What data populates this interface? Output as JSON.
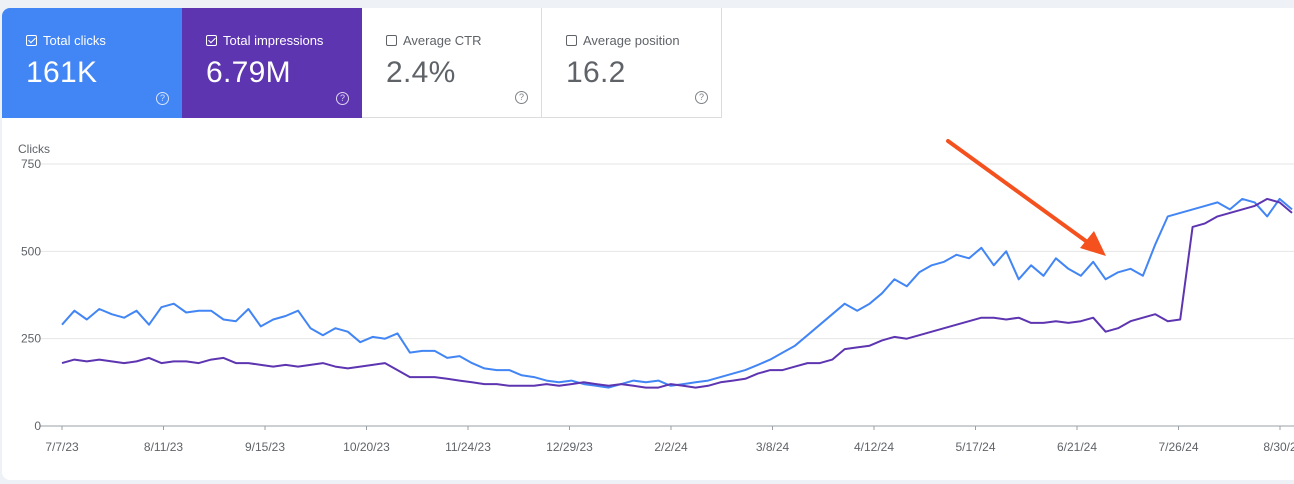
{
  "metrics": [
    {
      "label": "Total clicks",
      "value": "161K",
      "checked": true
    },
    {
      "label": "Total impressions",
      "value": "6.79M",
      "checked": true
    },
    {
      "label": "Average CTR",
      "value": "2.4%",
      "checked": false
    },
    {
      "label": "Average position",
      "value": "16.2",
      "checked": false
    }
  ],
  "colors": {
    "clicks": "#4285f4",
    "impressions": "#5e35b1",
    "arrow": "#f4511e",
    "grid": "#e6e6e6"
  },
  "icons": {
    "checkbox": "checkbox-icon",
    "help": "help-circle-icon",
    "annotation": "arrow-icon"
  },
  "chart_data": {
    "type": "line",
    "ylabel": "Clicks",
    "ylim": [
      0,
      750
    ],
    "yticks": [
      "0",
      "250",
      "500",
      "750"
    ],
    "xtick_labels": [
      "7/7/23",
      "8/11/23",
      "9/15/23",
      "10/20/23",
      "11/24/23",
      "12/29/23",
      "2/2/24",
      "3/8/24",
      "4/12/24",
      "5/17/24",
      "6/21/24",
      "7/26/24",
      "8/30/2"
    ],
    "grid": true,
    "legend": "none",
    "x_unit": "weeks",
    "series": [
      {
        "key": "clicks",
        "values": [
          290,
          330,
          305,
          335,
          320,
          310,
          330,
          290,
          340,
          350,
          325,
          330,
          330,
          305,
          300,
          335,
          285,
          305,
          315,
          330,
          280,
          260,
          280,
          270,
          240,
          255,
          250,
          265,
          210,
          215,
          215,
          195,
          200,
          180,
          165,
          160,
          160,
          145,
          140,
          130,
          125,
          130,
          120,
          115,
          110,
          120,
          130,
          125,
          130,
          115,
          120,
          125,
          130,
          140,
          150,
          160,
          175,
          190,
          210,
          230,
          260,
          290,
          320,
          350,
          330,
          350,
          380,
          420,
          400,
          440,
          460,
          470,
          490,
          480,
          510,
          460,
          500,
          420,
          460,
          430,
          480,
          450,
          430,
          470,
          420,
          440,
          450,
          430,
          520,
          600,
          610,
          620,
          630,
          640,
          620,
          650,
          640,
          600,
          650,
          620
        ]
      },
      {
        "key": "impressions",
        "values": [
          180,
          190,
          185,
          190,
          185,
          180,
          185,
          195,
          180,
          185,
          185,
          180,
          190,
          195,
          180,
          180,
          175,
          170,
          175,
          170,
          175,
          180,
          170,
          165,
          170,
          175,
          180,
          160,
          140,
          140,
          140,
          135,
          130,
          125,
          120,
          120,
          115,
          115,
          115,
          120,
          115,
          120,
          125,
          120,
          115,
          120,
          115,
          110,
          110,
          120,
          115,
          110,
          115,
          125,
          130,
          135,
          150,
          160,
          160,
          170,
          180,
          180,
          190,
          220,
          225,
          230,
          245,
          255,
          250,
          260,
          270,
          280,
          290,
          300,
          310,
          310,
          305,
          310,
          295,
          295,
          300,
          295,
          300,
          310,
          270,
          280,
          300,
          310,
          320,
          300,
          305,
          570,
          580,
          600,
          610,
          620,
          630,
          650,
          640,
          610
        ]
      }
    ]
  }
}
